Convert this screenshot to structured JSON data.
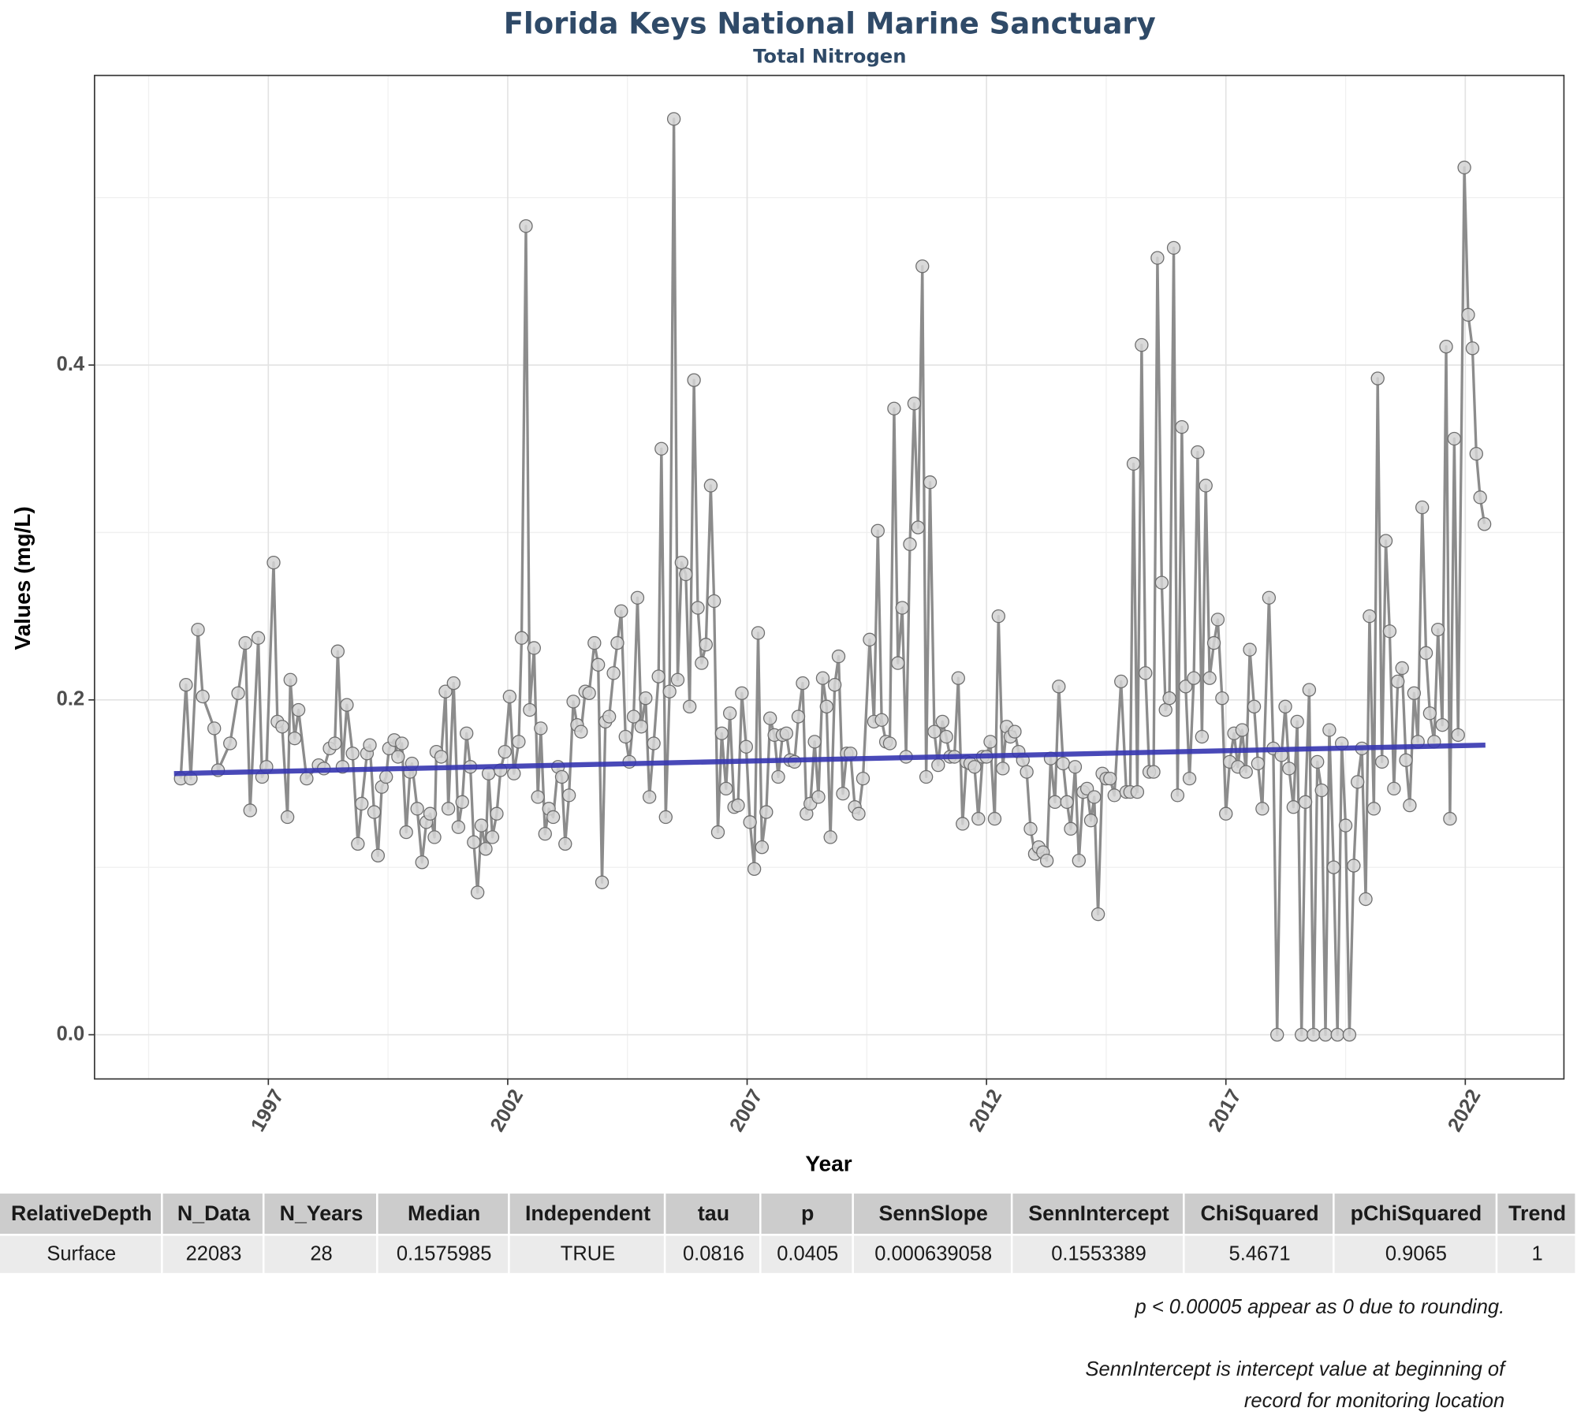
{
  "chart_data": {
    "type": "line",
    "title": "Florida Keys National Marine Sanctuary",
    "subtitle": "Total Nitrogen",
    "x_label": "Year",
    "y_label": "Values (mg/L)",
    "xlim": [
      1993.37,
      2024.06
    ],
    "ylim": [
      -0.0264,
      0.573
    ],
    "xticks": [
      1997,
      2002,
      2007,
      2012,
      2017,
      2022
    ],
    "yticks": [
      {
        "value": 0,
        "label": "0.0"
      },
      0.2,
      0.4
    ],
    "x_minor_grid": [
      1994.5,
      1999.5,
      2004.5,
      2009.5,
      2014.5,
      2019.5
    ],
    "y_minor_grid": [
      0.1,
      0.3,
      0.5
    ],
    "grid": true,
    "markers": true,
    "x": [
      1995.17,
      1995.28,
      1995.38,
      1995.53,
      1995.63,
      1995.87,
      1995.95,
      1996.2,
      1996.37,
      1996.52,
      1996.62,
      1996.79,
      1996.87,
      1996.96,
      1997.11,
      1997.19,
      1997.29,
      1997.4,
      1997.46,
      1997.55,
      1997.63,
      1997.8,
      1998.05,
      1998.16,
      1998.28,
      1998.39,
      1998.45,
      1998.55,
      1998.64,
      1998.76,
      1998.87,
      1998.95,
      1999.06,
      1999.12,
      1999.21,
      1999.29,
      1999.37,
      1999.46,
      1999.52,
      1999.63,
      1999.71,
      1999.79,
      1999.88,
      1999.96,
      2000,
      2000.11,
      2000.21,
      2000.3,
      2000.38,
      2000.47,
      2000.51,
      2000.61,
      2000.7,
      2000.76,
      2000.87,
      2000.97,
      2001.05,
      2001.14,
      2001.22,
      2001.29,
      2001.37,
      2001.45,
      2001.54,
      2001.6,
      2001.68,
      2001.77,
      2001.85,
      2001.94,
      2002.04,
      2002.13,
      2002.23,
      2002.29,
      2002.38,
      2002.46,
      2002.55,
      2002.63,
      2002.69,
      2002.78,
      2002.86,
      2002.95,
      2003.05,
      2003.13,
      2003.2,
      2003.28,
      2003.37,
      2003.45,
      2003.53,
      2003.62,
      2003.7,
      2003.81,
      2003.89,
      2003.97,
      2004.04,
      2004.12,
      2004.21,
      2004.29,
      2004.37,
      2004.46,
      2004.54,
      2004.63,
      2004.71,
      2004.79,
      2004.88,
      2004.96,
      2005.05,
      2005.15,
      2005.21,
      2005.3,
      2005.38,
      2005.47,
      2005.55,
      2005.63,
      2005.72,
      2005.8,
      2005.89,
      2005.97,
      2006.05,
      2006.14,
      2006.24,
      2006.31,
      2006.39,
      2006.47,
      2006.56,
      2006.64,
      2006.73,
      2006.81,
      2006.89,
      2006.98,
      2007.06,
      2007.15,
      2007.23,
      2007.31,
      2007.4,
      2007.48,
      2007.57,
      2007.65,
      2007.74,
      2007.82,
      2007.9,
      2007.99,
      2008.07,
      2008.16,
      2008.24,
      2008.32,
      2008.41,
      2008.49,
      2008.58,
      2008.66,
      2008.74,
      2008.83,
      2008.91,
      2009,
      2009.08,
      2009.16,
      2009.25,
      2009.33,
      2009.42,
      2009.56,
      2009.65,
      2009.73,
      2009.81,
      2009.9,
      2009.98,
      2010.07,
      2010.15,
      2010.24,
      2010.32,
      2010.4,
      2010.49,
      2010.57,
      2010.66,
      2010.74,
      2010.82,
      2010.91,
      2010.99,
      2011.08,
      2011.16,
      2011.24,
      2011.33,
      2011.41,
      2011.5,
      2011.58,
      2011.66,
      2011.75,
      2011.83,
      2011.92,
      2012,
      2012.08,
      2012.17,
      2012.25,
      2012.34,
      2012.42,
      2012.5,
      2012.59,
      2012.67,
      2012.76,
      2012.84,
      2012.92,
      2013.01,
      2013.09,
      2013.18,
      2013.26,
      2013.34,
      2013.43,
      2013.51,
      2013.6,
      2013.68,
      2013.76,
      2013.85,
      2013.93,
      2014.02,
      2014.1,
      2014.18,
      2014.25,
      2014.33,
      2014.42,
      2014.5,
      2014.58,
      2014.67,
      2014.81,
      2014.92,
      2015,
      2015.07,
      2015.15,
      2015.24,
      2015.32,
      2015.4,
      2015.49,
      2015.57,
      2015.66,
      2015.74,
      2015.82,
      2015.91,
      2015.99,
      2016.08,
      2016.16,
      2016.24,
      2016.33,
      2016.41,
      2016.5,
      2016.58,
      2016.66,
      2016.75,
      2016.83,
      2016.92,
      2017,
      2017.08,
      2017.17,
      2017.25,
      2017.34,
      2017.42,
      2017.5,
      2017.59,
      2017.67,
      2017.76,
      2017.9,
      2017.99,
      2018.07,
      2018.16,
      2018.24,
      2018.32,
      2018.41,
      2018.49,
      2018.58,
      2018.66,
      2018.74,
      2018.83,
      2018.91,
      2019,
      2019.08,
      2019.16,
      2019.25,
      2019.33,
      2019.42,
      2019.5,
      2019.58,
      2019.67,
      2019.75,
      2019.84,
      2019.92,
      2020,
      2020.09,
      2020.17,
      2020.26,
      2020.34,
      2020.42,
      2020.51,
      2020.59,
      2020.68,
      2020.76,
      2020.84,
      2020.93,
      2021.01,
      2021.1,
      2021.18,
      2021.26,
      2021.35,
      2021.43,
      2021.52,
      2021.6,
      2021.68,
      2021.77,
      2021.85,
      2021.98,
      2022.06,
      2022.15,
      2022.23,
      2022.31,
      2022.4
    ],
    "series": [
      {
        "color": "#8c8c8c",
        "marker_fill": "#d4d4d4",
        "marker_stroke": "#6e6e6e",
        "values": [
          0.153,
          0.209,
          0.153,
          0.242,
          0.202,
          0.183,
          0.158,
          0.174,
          0.204,
          0.234,
          0.134,
          0.237,
          0.154,
          0.16,
          0.282,
          0.187,
          0.184,
          0.13,
          0.212,
          0.177,
          0.194,
          0.153,
          0.161,
          0.159,
          0.171,
          0.174,
          0.229,
          0.16,
          0.197,
          0.168,
          0.114,
          0.138,
          0.168,
          0.173,
          0.133,
          0.107,
          0.148,
          0.154,
          0.171,
          0.176,
          0.166,
          0.174,
          0.121,
          0.157,
          0.162,
          0.135,
          0.103,
          0.127,
          0.132,
          0.118,
          0.169,
          0.166,
          0.205,
          0.135,
          0.21,
          0.124,
          0.139,
          0.18,
          0.16,
          0.115,
          0.085,
          0.125,
          0.111,
          0.156,
          0.118,
          0.132,
          0.158,
          0.169,
          0.202,
          0.156,
          0.175,
          0.237,
          0.483,
          0.194,
          0.231,
          0.142,
          0.183,
          0.12,
          0.135,
          0.13,
          0.16,
          0.154,
          0.114,
          0.143,
          0.199,
          0.185,
          0.181,
          0.205,
          0.204,
          0.234,
          0.221,
          0.091,
          0.187,
          0.19,
          0.216,
          0.234,
          0.253,
          0.178,
          0.163,
          0.19,
          0.261,
          0.184,
          0.201,
          0.142,
          0.174,
          0.214,
          0.35,
          0.13,
          0.205,
          0.547,
          0.212,
          0.282,
          0.275,
          0.196,
          0.391,
          0.255,
          0.222,
          0.233,
          0.328,
          0.259,
          0.121,
          0.18,
          0.147,
          0.192,
          0.136,
          0.137,
          0.204,
          0.172,
          0.127,
          0.099,
          0.24,
          0.112,
          0.133,
          0.189,
          0.179,
          0.154,
          0.179,
          0.18,
          0.164,
          0.163,
          0.19,
          0.21,
          0.132,
          0.138,
          0.175,
          0.142,
          0.213,
          0.196,
          0.118,
          0.209,
          0.226,
          0.144,
          0.168,
          0.168,
          0.136,
          0.132,
          0.153,
          0.236,
          0.187,
          0.301,
          0.188,
          0.175,
          0.174,
          0.374,
          0.222,
          0.255,
          0.166,
          0.293,
          0.377,
          0.303,
          0.459,
          0.154,
          0.33,
          0.181,
          0.161,
          0.187,
          0.178,
          0.166,
          0.166,
          0.213,
          0.126,
          0.163,
          0.162,
          0.16,
          0.129,
          0.166,
          0.166,
          0.175,
          0.129,
          0.25,
          0.159,
          0.184,
          0.178,
          0.181,
          0.169,
          0.164,
          0.157,
          0.123,
          0.108,
          0.112,
          0.109,
          0.104,
          0.165,
          0.139,
          0.208,
          0.162,
          0.139,
          0.123,
          0.16,
          0.104,
          0.145,
          0.147,
          0.128,
          0.142,
          0.072,
          0.156,
          0.153,
          0.153,
          0.143,
          0.211,
          0.145,
          0.145,
          0.341,
          0.145,
          0.412,
          0.216,
          0.157,
          0.157,
          0.464,
          0.27,
          0.194,
          0.201,
          0.47,
          0.143,
          0.363,
          0.208,
          0.153,
          0.213,
          0.348,
          0.178,
          0.328,
          0.213,
          0.234,
          0.248,
          0.201,
          0.132,
          0.163,
          0.18,
          0.16,
          0.182,
          0.157,
          0.23,
          0.196,
          0.162,
          0.135,
          0.261,
          0.171,
          0,
          0.167,
          0.196,
          0.159,
          0.136,
          0.187,
          0,
          0.139,
          0.206,
          0,
          0.163,
          0.146,
          0,
          0.182,
          0.1,
          0,
          0.174,
          0.125,
          0,
          0.101,
          0.151,
          0.171,
          0.081,
          0.25,
          0.135,
          0.392,
          0.163,
          0.295,
          0.241,
          0.147,
          0.211,
          0.219,
          0.164,
          0.137,
          0.204,
          0.175,
          0.315,
          0.228,
          0.192,
          0.175,
          0.242,
          0.185,
          0.411,
          0.129,
          0.356,
          0.179,
          0.518,
          0.43,
          0.41,
          0.347,
          0.321,
          0.305
        ]
      }
    ],
    "trend": {
      "color": "#3535b0",
      "x": [
        1995.03,
        2022.42
      ],
      "values": [
        0.156,
        0.173
      ]
    }
  },
  "table": {
    "columns": [
      "RelativeDepth",
      "N_Data",
      "N_Years",
      "Median",
      "Independent",
      "tau",
      "p",
      "SennSlope",
      "SennIntercept",
      "ChiSquared",
      "pChiSquared",
      "Trend"
    ],
    "rows": [
      [
        "Surface",
        "22083",
        "28",
        "0.1575985",
        "TRUE",
        "0.0816",
        "0.0405",
        "0.000639058",
        "0.1553389",
        "5.4671",
        "0.9065",
        "1"
      ]
    ]
  },
  "notes": {
    "rounding": "p < 0.00005 appear as 0 due to rounding.",
    "intercept": [
      "SennIntercept is intercept value at beginning of",
      "record for monitoring location"
    ]
  }
}
